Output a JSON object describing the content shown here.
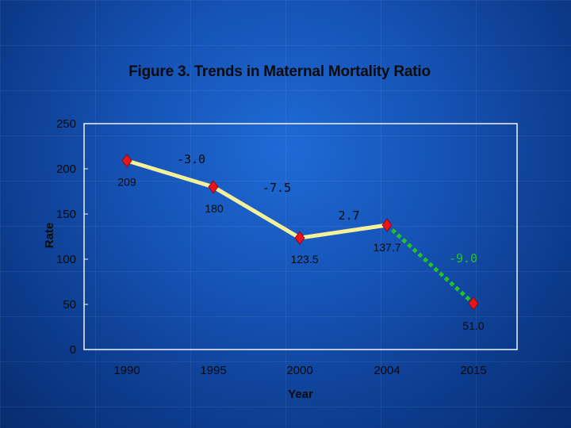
{
  "colors": {
    "line": "#f5f09a",
    "marker": "#e8141c",
    "projection": "#22c326",
    "label": "#0b0b0b",
    "change_label": "#0b0b0b",
    "change_label_projection": "#22c326"
  },
  "chart_data": {
    "type": "line",
    "title": "Figure 3.  Trends in Maternal Mortality Ratio",
    "xlabel": "Year",
    "ylabel": "Rate",
    "ylim": [
      0,
      250
    ],
    "yticks": [
      0,
      50,
      100,
      150,
      200,
      250
    ],
    "categories": [
      "1990",
      "1995",
      "2000",
      "2004",
      "2015"
    ],
    "values": [
      209,
      180,
      123.5,
      137.7,
      51.0
    ],
    "value_labels": [
      "209",
      "180",
      "123.5",
      "137.7",
      "51.0"
    ],
    "projection_start_index": 3,
    "segment_changes": [
      "-3.0",
      "-7.5",
      "2.7",
      "-9.0"
    ]
  }
}
